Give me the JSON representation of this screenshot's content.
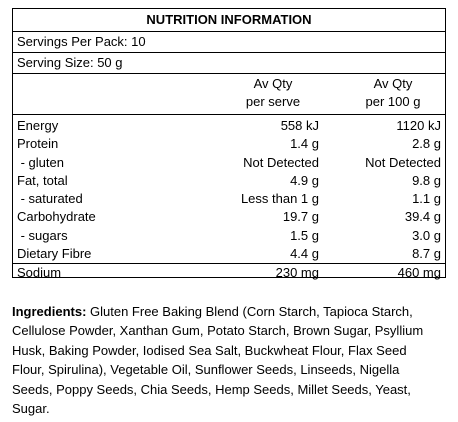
{
  "title": "NUTRITION INFORMATION",
  "servings_per_pack": "Servings Per Pack: 10",
  "serving_size": "Serving Size: 50 g",
  "columns": {
    "per_serve_line1": "Av Qty",
    "per_serve_line2": "per serve",
    "per_100g_line1": "Av Qty",
    "per_100g_line2": "per 100 g"
  },
  "rows": [
    {
      "label": "Energy",
      "per_serve": "558 kJ",
      "per_100g": "1120 kJ"
    },
    {
      "label": "Protein",
      "per_serve": "1.4 g",
      "per_100g": "2.8 g"
    },
    {
      "label": " - gluten",
      "per_serve": "Not Detected",
      "per_100g": "Not Detected"
    },
    {
      "label": "Fat, total",
      "per_serve": "4.9 g",
      "per_100g": "9.8 g"
    },
    {
      "label": " - saturated",
      "per_serve": "Less than 1 g",
      "per_100g": "1.1 g"
    },
    {
      "label": "Carbohydrate",
      "per_serve": "19.7 g",
      "per_100g": "39.4 g"
    },
    {
      "label": " - sugars",
      "per_serve": "1.5 g",
      "per_100g": "3.0 g"
    },
    {
      "label": "Dietary Fibre",
      "per_serve": "4.4 g",
      "per_100g": "8.7 g"
    },
    {
      "label": "Sodium",
      "per_serve": "230 mg",
      "per_100g": "460 mg"
    }
  ],
  "ingredients": {
    "label": "Ingredients:",
    "text": " Gluten Free Baking Blend (Corn Starch, Tapioca Starch, Cellulose Powder, Xanthan Gum, Potato Starch, Brown Sugar, Psyllium Husk, Baking Powder, Iodised Sea Salt, Buckwheat Flour, Flax Seed Flour, Spirulina), Vegetable Oil, Sunflower Seeds, Linseeds, Nigella Seeds, Poppy Seeds, Chia Seeds, Hemp Seeds, Millet Seeds, Yeast, Sugar."
  }
}
